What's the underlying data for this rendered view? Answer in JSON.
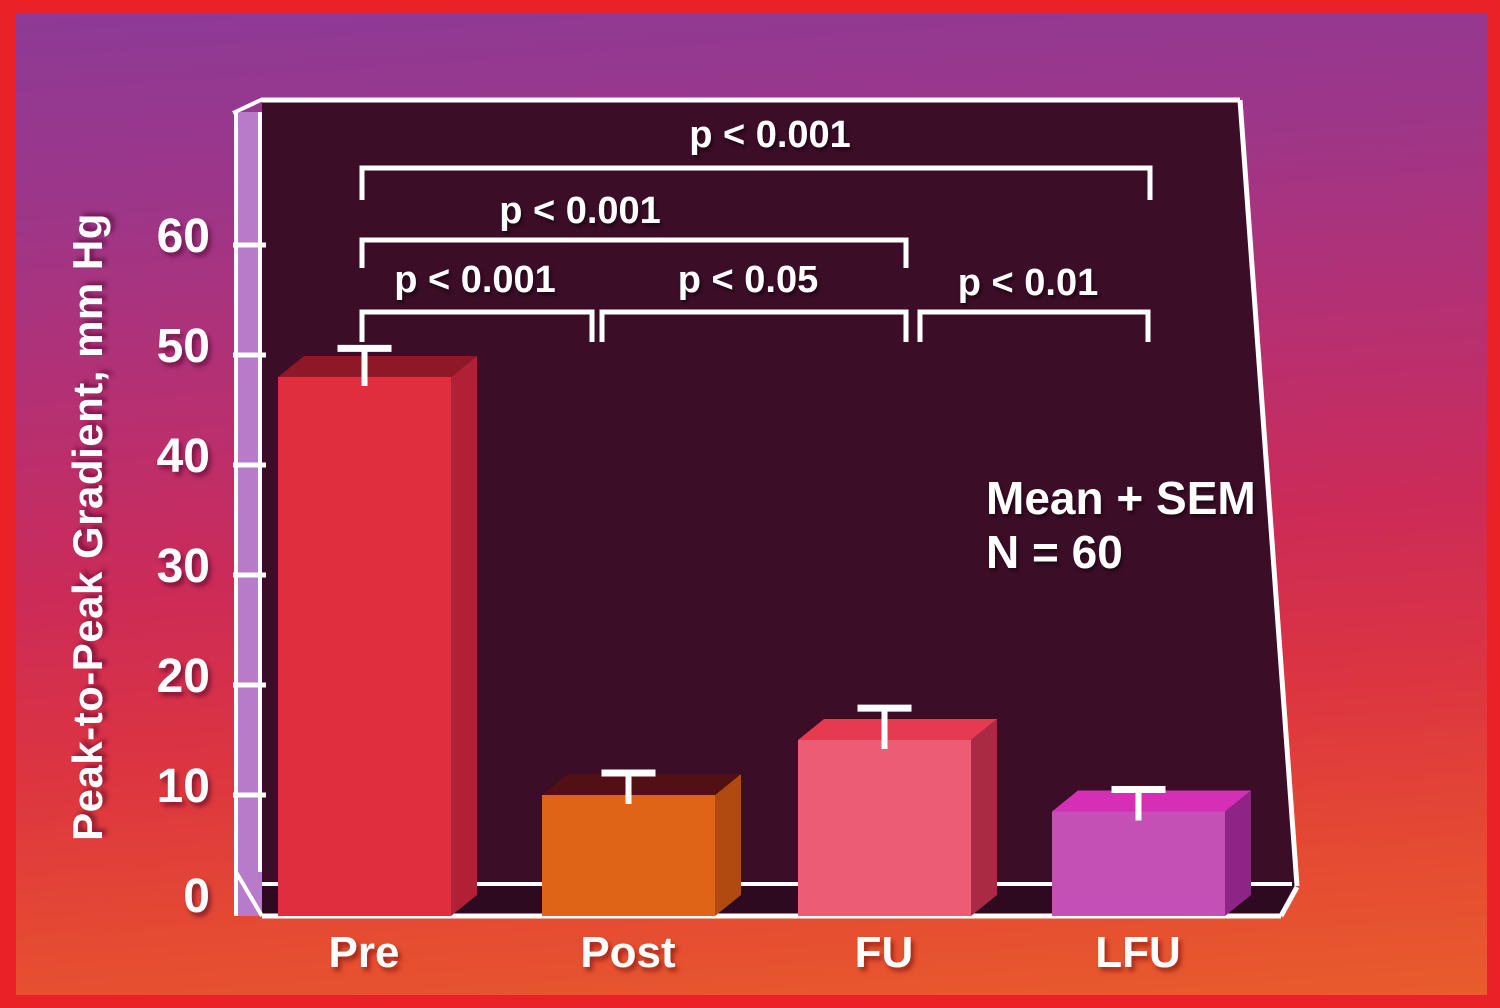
{
  "slide": {
    "border_color": "#ea2127",
    "plot_bg": "#3c0d27",
    "floor_color": "#2d0a20",
    "axis_wall_color": "#b77bca",
    "line_color": "#ffffff",
    "text_color": "#ffffff"
  },
  "chart_data": {
    "type": "bar",
    "title": "",
    "xlabel": "",
    "ylabel": "Peak-to-Peak Gradient, mm Hg",
    "ylim": [
      0,
      65
    ],
    "yticks": [
      0,
      10,
      20,
      30,
      40,
      50,
      60
    ],
    "categories": [
      "Pre",
      "Post",
      "FU",
      "LFU"
    ],
    "values": [
      48,
      10,
      15,
      8.5
    ],
    "sem": [
      2.6,
      2.0,
      2.9,
      2.0
    ],
    "bar_colors": [
      {
        "front": "#e12e3f",
        "top": "#8e1828",
        "side": "#b22035"
      },
      {
        "front": "#e06418",
        "top": "#521015",
        "side": "#b04a10"
      },
      {
        "front": "#ec5c74",
        "top": "#e63a50",
        "side": "#aa2a44"
      },
      {
        "front": "#c44fb5",
        "top": "#d52fb5",
        "side": "#8f2487"
      }
    ],
    "error_bar_note": "Mean + SEM",
    "n_label": "N = 60",
    "legend": [],
    "significance": [
      {
        "pair": "Pre-LFU",
        "label": "p < 0.001"
      },
      {
        "pair": "Pre-FU",
        "label": "p < 0.001"
      },
      {
        "pair": "Pre-Post",
        "label": "p < 0.001"
      },
      {
        "pair": "Post-FU",
        "label": "p < 0.05"
      },
      {
        "pair": "FU-LFU",
        "label": "p < 0.01"
      }
    ]
  }
}
